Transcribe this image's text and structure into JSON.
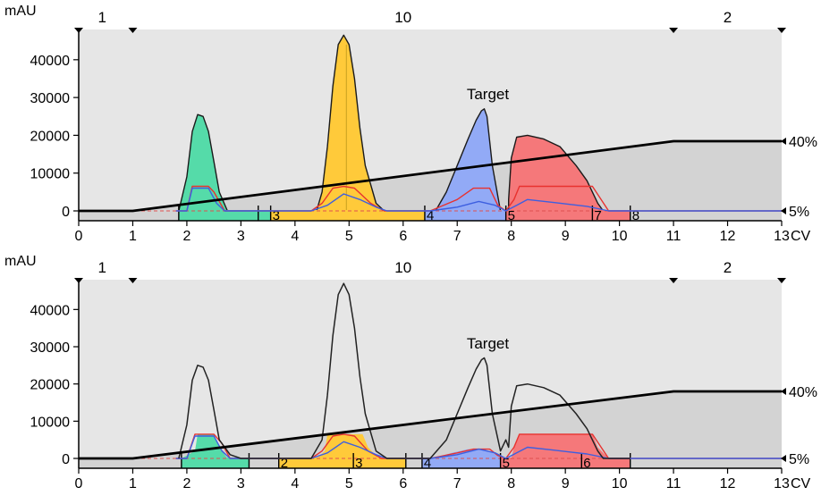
{
  "chart_data": [
    {
      "type": "area",
      "panel": "top",
      "ylabel": "mAU",
      "xlabel": "CV",
      "xlim": [
        0,
        13
      ],
      "ylim": [
        0,
        48000
      ],
      "x_ticks": [
        0,
        1,
        2,
        3,
        4,
        5,
        6,
        7,
        8,
        9,
        10,
        11,
        12,
        13
      ],
      "y_ticks": [
        0,
        10000,
        20000,
        30000,
        40000
      ],
      "segment_labels": [
        {
          "x": 0.5,
          "text": "1"
        },
        {
          "x": 6.0,
          "text": "10"
        },
        {
          "x": 12.0,
          "text": "2"
        }
      ],
      "segment_markers": [
        0,
        1,
        11,
        13
      ],
      "annotations": [
        {
          "text": "Target",
          "x": 7.5,
          "y": 30000
        }
      ],
      "gradient": {
        "points": [
          [
            0,
            5
          ],
          [
            1,
            5
          ],
          [
            11,
            40
          ],
          [
            13,
            40
          ]
        ],
        "labels": [
          {
            "text": "5%",
            "value": 5
          },
          {
            "text": "40%",
            "value": 40
          }
        ],
        "scale_note": "right-side % scale: 5% at baseline, 40% at ~18000 mAU"
      },
      "fill_chromatogram": true,
      "peaks": [
        {
          "name": "peak-1",
          "x": [
            1.85,
            2.0,
            2.1,
            2.2,
            2.3,
            2.4,
            2.5,
            2.6,
            2.75
          ],
          "y": [
            0,
            9000,
            21000,
            25500,
            25000,
            21000,
            13000,
            5000,
            0
          ],
          "color": "#55dba9"
        },
        {
          "name": "peak-2",
          "x": [
            4.4,
            4.5,
            4.6,
            4.7,
            4.8,
            4.9,
            5.0,
            5.1,
            5.2,
            5.3,
            5.5,
            5.65
          ],
          "y": [
            0,
            5000,
            17000,
            33000,
            44000,
            46500,
            44000,
            35000,
            22000,
            12000,
            2000,
            0
          ],
          "color": "#ffca3a"
        },
        {
          "name": "peak-3",
          "x": [
            6.6,
            6.8,
            7.0,
            7.2,
            7.35,
            7.45,
            7.5,
            7.55,
            7.65,
            7.8
          ],
          "y": [
            0,
            5000,
            12000,
            19000,
            24000,
            26500,
            27000,
            25000,
            12000,
            0
          ],
          "color": "#92aaf6"
        },
        {
          "name": "peak-4",
          "x": [
            7.95,
            8.0,
            8.1,
            8.3,
            8.6,
            8.9,
            9.2,
            9.4,
            9.6,
            9.7
          ],
          "y": [
            3000,
            14000,
            19500,
            20000,
            19000,
            17000,
            12000,
            8000,
            2000,
            0
          ],
          "color": "#f5787a"
        }
      ],
      "red_trace": {
        "x": [
          1.8,
          2.0,
          2.1,
          2.4,
          2.5,
          2.7,
          4.3,
          4.5,
          4.7,
          4.9,
          5.1,
          5.4,
          5.65,
          6.5,
          7.0,
          7.3,
          7.6,
          7.75,
          7.9,
          8.05,
          8.15,
          9.5,
          9.8,
          10.2,
          13
        ],
        "y": [
          0,
          0,
          6500,
          6500,
          5000,
          0,
          0,
          2000,
          6000,
          6500,
          6000,
          2000,
          0,
          0,
          3000,
          6000,
          6000,
          1500,
          0,
          3000,
          6500,
          6500,
          0,
          0,
          0
        ]
      },
      "blue_trace": {
        "x": [
          1.8,
          2.0,
          2.1,
          2.4,
          2.55,
          2.7,
          4.3,
          4.6,
          4.9,
          5.2,
          5.5,
          5.7,
          6.5,
          7.0,
          7.4,
          7.7,
          7.9,
          8.1,
          8.3,
          8.8,
          9.4,
          9.8,
          10.2,
          13
        ],
        "y": [
          0,
          0,
          6000,
          6000,
          2000,
          0,
          0,
          1500,
          4500,
          3000,
          1000,
          0,
          0,
          1000,
          2500,
          1500,
          0,
          1500,
          3000,
          2200,
          1200,
          0,
          0,
          0
        ]
      },
      "fractions": {
        "boundaries": [
          1.85,
          3.32,
          3.55,
          6.4,
          7.9,
          9.5,
          10.2
        ],
        "label_at_boundary": [
          null,
          null,
          "3",
          "4",
          "5",
          "7",
          "8"
        ],
        "segments": [
          {
            "from": 1.85,
            "to": 3.32,
            "color": "#55dba9"
          },
          {
            "from": 3.32,
            "to": 3.55,
            "color": "#55dba9"
          },
          {
            "from": 3.55,
            "to": 6.4,
            "color": "#ffca3a"
          },
          {
            "from": 6.4,
            "to": 7.9,
            "color": "#92aaf6"
          },
          {
            "from": 7.9,
            "to": 10.2,
            "color": "#f5787a"
          }
        ]
      }
    },
    {
      "type": "line",
      "panel": "bottom",
      "ylabel": "mAU",
      "xlabel": "CV",
      "xlim": [
        0,
        13
      ],
      "ylim": [
        0,
        48000
      ],
      "x_ticks": [
        0,
        1,
        2,
        3,
        4,
        5,
        6,
        7,
        8,
        9,
        10,
        11,
        12,
        13
      ],
      "y_ticks": [
        0,
        10000,
        20000,
        30000,
        40000
      ],
      "segment_labels": [
        {
          "x": 0.5,
          "text": "1"
        },
        {
          "x": 6.0,
          "text": "10"
        },
        {
          "x": 12.0,
          "text": "2"
        }
      ],
      "segment_markers": [
        0,
        1,
        11,
        13
      ],
      "annotations": [
        {
          "text": "Target",
          "x": 7.5,
          "y": 30000
        }
      ],
      "gradient": {
        "points": [
          [
            0,
            5
          ],
          [
            1,
            5
          ],
          [
            11,
            40
          ],
          [
            13,
            40
          ]
        ],
        "labels": [
          {
            "text": "5%",
            "value": 5
          },
          {
            "text": "40%",
            "value": 40
          }
        ]
      },
      "fill_chromatogram": false,
      "black_trace": {
        "x": [
          1.85,
          2.0,
          2.1,
          2.2,
          2.3,
          2.4,
          2.5,
          2.6,
          2.8,
          3.0,
          4.3,
          4.5,
          4.6,
          4.7,
          4.8,
          4.9,
          5.0,
          5.1,
          5.2,
          5.3,
          5.5,
          5.7,
          6.5,
          6.8,
          7.0,
          7.2,
          7.35,
          7.45,
          7.5,
          7.55,
          7.65,
          7.8,
          7.9,
          7.95,
          8.0,
          8.1,
          8.3,
          8.6,
          8.9,
          9.2,
          9.4,
          9.6,
          9.7,
          10.2
        ],
        "y": [
          0,
          9000,
          21000,
          25000,
          24500,
          21000,
          13000,
          5000,
          1000,
          0,
          0,
          5000,
          17000,
          33000,
          44000,
          47000,
          44000,
          35000,
          22000,
          12000,
          2000,
          0,
          0,
          5000,
          12000,
          19000,
          24000,
          26500,
          27000,
          25000,
          12000,
          2000,
          5000,
          3000,
          14000,
          19500,
          20000,
          19000,
          17000,
          12000,
          8000,
          2000,
          0,
          0
        ]
      },
      "filled_bands": [
        {
          "x": [
            1.9,
            2.15,
            2.2,
            2.5,
            2.6,
            2.75
          ],
          "y": [
            0,
            2000,
            6500,
            6500,
            3000,
            0
          ],
          "color": "#55dba9"
        },
        {
          "x": [
            4.4,
            4.55,
            4.6,
            5.25,
            5.35,
            5.55
          ],
          "y": [
            0,
            2000,
            6500,
            6500,
            3000,
            0
          ],
          "color": "#ffca3a"
        },
        {
          "x": [
            6.55,
            6.9,
            7.2,
            7.5,
            7.75,
            7.85
          ],
          "y": [
            0,
            1500,
            2500,
            2500,
            1000,
            0
          ],
          "color": "#92aaf6"
        },
        {
          "x": [
            8.0,
            8.05,
            8.15,
            9.5,
            9.6,
            9.8
          ],
          "y": [
            0,
            3000,
            6500,
            6500,
            3000,
            0
          ],
          "color": "#f5787a"
        }
      ],
      "red_trace": {
        "x": [
          1.8,
          2.0,
          2.15,
          2.5,
          2.65,
          2.8,
          4.3,
          4.5,
          4.7,
          4.9,
          5.1,
          5.35,
          5.6,
          6.5,
          7.0,
          7.3,
          7.6,
          7.75,
          7.9,
          8.05,
          8.15,
          9.5,
          9.8,
          10.2,
          13
        ],
        "y": [
          0,
          0,
          6500,
          6500,
          4000,
          0,
          0,
          2000,
          6000,
          6500,
          6000,
          2000,
          0,
          0,
          1500,
          2500,
          2500,
          800,
          0,
          3000,
          6500,
          6500,
          0,
          0,
          0
        ]
      },
      "blue_trace": {
        "x": [
          1.8,
          2.0,
          2.15,
          2.5,
          2.65,
          2.8,
          4.3,
          4.6,
          4.9,
          5.2,
          5.5,
          5.7,
          6.5,
          7.0,
          7.4,
          7.7,
          7.9,
          8.1,
          8.3,
          8.8,
          9.4,
          9.8,
          10.2,
          13
        ],
        "y": [
          0,
          0,
          6000,
          6000,
          2000,
          0,
          0,
          1500,
          4500,
          3000,
          1000,
          0,
          0,
          1000,
          2500,
          1500,
          0,
          1500,
          3000,
          2200,
          1200,
          0,
          0,
          0
        ]
      },
      "fractions": {
        "boundaries": [
          1.9,
          3.15,
          3.7,
          5.08,
          6.05,
          6.35,
          7.8,
          9.3,
          10.2
        ],
        "label_at_boundary": [
          null,
          null,
          "2",
          "3",
          null,
          "4",
          "5",
          "6",
          null
        ],
        "segments": [
          {
            "from": 1.9,
            "to": 3.15,
            "color": "#55dba9"
          },
          {
            "from": 3.7,
            "to": 6.05,
            "color": "#ffca3a"
          },
          {
            "from": 6.35,
            "to": 7.8,
            "color": "#92aaf6"
          },
          {
            "from": 7.8,
            "to": 10.2,
            "color": "#f5787a"
          }
        ]
      }
    }
  ]
}
